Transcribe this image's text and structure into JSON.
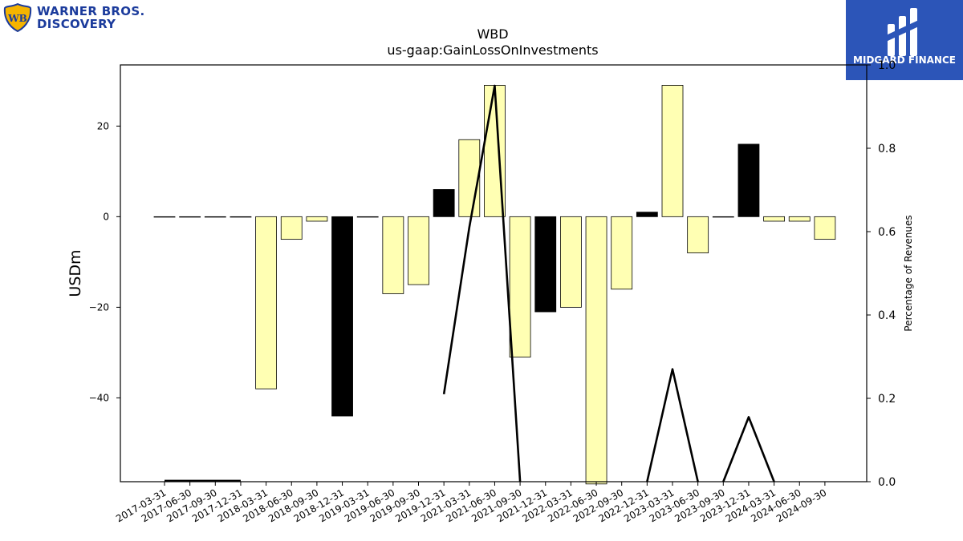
{
  "brand": {
    "left_logo_line1": "WARNER BROS.",
    "left_logo_line2": "DISCOVERY",
    "left_logo_mark": "WB",
    "right_logo_text": "MIDGARD FINANCE"
  },
  "chart_data": {
    "type": "bar",
    "title": "WBD",
    "subtitle": "us-gaap:GainLossOnInvestments",
    "ylabel": "USDm",
    "y2label": "Percentage of Revenues",
    "ylim": [
      -58.5,
      33.5
    ],
    "y2lim": [
      0,
      1.0
    ],
    "yticks": [
      -40,
      -20,
      0,
      20
    ],
    "y2ticks": [
      0.0,
      0.2,
      0.4,
      0.6,
      0.8,
      1.0
    ],
    "y2tick_labels": [
      "0.0",
      "0.2",
      "0.4",
      "0.6",
      "0.8",
      "1.0"
    ],
    "categories": [
      "2017-03-31",
      "2017-06-30",
      "2017-09-30",
      "2017-12-31",
      "2018-03-31",
      "2018-06-30",
      "2018-09-30",
      "2018-12-31",
      "2019-03-31",
      "2019-06-30",
      "2019-09-30",
      "2019-12-31",
      "2021-03-31",
      "2021-06-30",
      "2021-09-30",
      "2021-12-31",
      "2022-03-31",
      "2022-06-30",
      "2022-09-30",
      "2022-12-31",
      "2023-03-31",
      "2023-06-30",
      "2023-09-30",
      "2023-12-31",
      "2024-03-31",
      "2024-06-30",
      "2024-09-30"
    ],
    "values": [
      0,
      0,
      0,
      0,
      -38,
      -5,
      -1,
      -44,
      0,
      -17,
      -15,
      6,
      17,
      29,
      -31,
      -21,
      -20,
      -59,
      -16,
      1,
      29,
      -8,
      0,
      16,
      -1,
      -1,
      -5
    ],
    "bar_colors": [
      "#ffffb3",
      "#ffffb3",
      "#ffffb3",
      "#ffffb3",
      "#ffffb3",
      "#ffffb3",
      "#ffffb3",
      "#000000",
      "#ffffb3",
      "#ffffb3",
      "#ffffb3",
      "#000000",
      "#ffffb3",
      "#ffffb3",
      "#ffffb3",
      "#000000",
      "#ffffb3",
      "#ffffb3",
      "#ffffb3",
      "#000000",
      "#ffffb3",
      "#ffffb3",
      "#ffffb3",
      "#000000",
      "#ffffb3",
      "#ffffb3",
      "#ffffb3"
    ],
    "line_series": {
      "name": "Percentage of Revenues",
      "values": [
        0.002,
        0.002,
        0.002,
        0.002,
        0,
        0,
        0,
        0,
        0,
        0,
        0,
        0.21,
        0.61,
        0.95,
        0,
        0,
        0,
        0,
        0,
        0,
        0.27,
        0,
        0,
        0.155,
        0,
        0,
        0
      ]
    },
    "line_segments": [
      [
        0,
        3
      ],
      [
        11,
        14
      ],
      [
        19,
        21
      ],
      [
        22,
        24
      ]
    ],
    "line_color": "#000000",
    "grid": false
  }
}
